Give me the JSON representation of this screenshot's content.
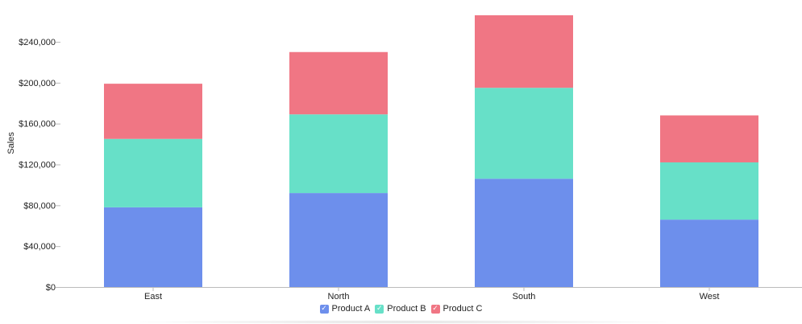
{
  "chart_data": {
    "type": "bar",
    "stacked": true,
    "categories": [
      "East",
      "North",
      "South",
      "West"
    ],
    "series": [
      {
        "name": "Product A",
        "color": "#6d8fec",
        "values": [
          78000,
          92000,
          106000,
          66000
        ]
      },
      {
        "name": "Product B",
        "color": "#67e0c8",
        "values": [
          67000,
          77000,
          89000,
          56000
        ]
      },
      {
        "name": "Product C",
        "color": "#f07684",
        "values": [
          54000,
          61000,
          71000,
          46000
        ]
      }
    ],
    "ylabel": "Sales",
    "xlabel": "",
    "ylim": [
      0,
      266000
    ],
    "yticks": [
      0,
      40000,
      80000,
      120000,
      160000,
      200000,
      240000
    ],
    "ytick_labels": [
      "$0",
      "$40,000",
      "$80,000",
      "$120,000",
      "$160,000",
      "$200,000",
      "$240,000"
    ],
    "grid": false,
    "legend_position": "bottom-center",
    "legend_checked": [
      true,
      true,
      true
    ]
  },
  "legend": {
    "check_glyph": "✓",
    "items": [
      {
        "label": "Product A",
        "color": "#6d8fec"
      },
      {
        "label": "Product B",
        "color": "#67e0c8"
      },
      {
        "label": "Product C",
        "color": "#f07684"
      }
    ]
  }
}
